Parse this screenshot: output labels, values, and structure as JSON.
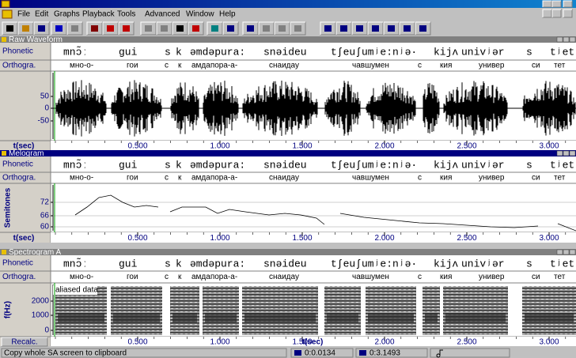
{
  "window": {
    "menu": [
      "File",
      "Edit",
      "Graphs",
      "Playback",
      "Tools",
      "Advanced",
      "Window",
      "Help"
    ]
  },
  "transcription": {
    "phonetic": [
      "mnɔ̃ː",
      "gui",
      "s",
      "k",
      "əmdəpura:",
      "snəideu",
      "tʃeuʃumʲe:nʲə·",
      "kijʌ",
      "univʲər",
      "s",
      "tʲet"
    ],
    "orthographic": [
      "мно-о-",
      "гои",
      "с",
      "к",
      "амдапора-а-",
      "снаидау",
      "чавшумен",
      "с",
      "кия",
      "универ",
      "си",
      "тет"
    ]
  },
  "panes": [
    {
      "title": "Raw Waveform",
      "rows": [
        "Phonetic",
        "Orthogra."
      ],
      "y_ticks": [
        "50",
        "0",
        "-50"
      ],
      "time_label": "t(sec)"
    },
    {
      "title": "Melogram",
      "rows": [
        "Phonetic",
        "Orthogra."
      ],
      "y_axis_label": "Semitones",
      "y_ticks": [
        "72",
        "66",
        "60"
      ],
      "time_label": "t(sec)"
    },
    {
      "title": "Spectrogram A",
      "rows": [
        "Phonetic",
        "Orthogra."
      ],
      "y_axis_label": "f(Hz)",
      "y_ticks": [
        "2000",
        "1000",
        "0"
      ],
      "note": "aliased data",
      "button": "Recalc.",
      "time_label": "t(sec)"
    }
  ],
  "time_ticks": [
    "0.500",
    "1.000",
    "1.500",
    "2.000",
    "2.500",
    "3.000"
  ],
  "status_bar": {
    "message": "Copy whole SA screen to clipboard",
    "cursor_start": "0:0.0134",
    "cursor_end": "0:3.1493"
  }
}
